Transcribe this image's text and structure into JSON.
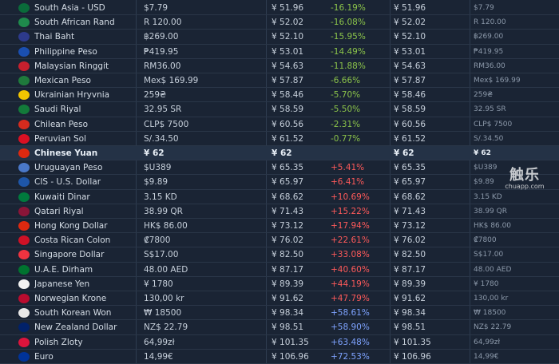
{
  "watermark": {
    "brand": "触乐",
    "site": "chuapp.com"
  },
  "colors": {
    "background": "#1a2434",
    "highlight_row": "#243246",
    "decrease": "#8bc34a",
    "increase": "#ff5a5a",
    "large_increase": "#7ea3ff"
  },
  "rows": [
    {
      "country": "South Asia - USD",
      "local": "$7.79",
      "cny": "¥ 51.96",
      "pct": "-16.19%",
      "cny2": "¥ 51.96",
      "local2": "$7.79",
      "flag": "#0a6b3a",
      "pct_class": "neg"
    },
    {
      "country": "South African Rand",
      "local": "R 120.00",
      "cny": "¥ 52.02",
      "pct": "-16.08%",
      "cny2": "¥ 52.02",
      "local2": "R 120.00",
      "flag": "#1f8a4c",
      "pct_class": "neg"
    },
    {
      "country": "Thai Baht",
      "local": "฿269.00",
      "cny": "¥ 52.10",
      "pct": "-15.95%",
      "cny2": "¥ 52.10",
      "local2": "฿269.00",
      "flag": "#2d3a8c",
      "pct_class": "neg"
    },
    {
      "country": "Philippine Peso",
      "local": "₱419.95",
      "cny": "¥ 53.01",
      "pct": "-14.49%",
      "cny2": "¥ 53.01",
      "local2": "₱419.95",
      "flag": "#1a4fb0",
      "pct_class": "neg"
    },
    {
      "country": "Malaysian Ringgit",
      "local": "RM36.00",
      "cny": "¥ 54.63",
      "pct": "-11.88%",
      "cny2": "¥ 54.63",
      "local2": "RM36.00",
      "flag": "#c8202e",
      "pct_class": "neg"
    },
    {
      "country": "Mexican Peso",
      "local": "Mex$ 169.99",
      "cny": "¥ 57.87",
      "pct": "-6.66%",
      "cny2": "¥ 57.87",
      "local2": "Mex$ 169.99",
      "flag": "#1f7a3c",
      "pct_class": "neg"
    },
    {
      "country": "Ukrainian Hryvnia",
      "local": "259₴",
      "cny": "¥ 58.46",
      "pct": "-5.70%",
      "cny2": "¥ 58.46",
      "local2": "259₴",
      "flag": "#f2c500",
      "pct_class": "neg"
    },
    {
      "country": "Saudi Riyal",
      "local": "32.95 SR",
      "cny": "¥ 58.59",
      "pct": "-5.50%",
      "cny2": "¥ 58.59",
      "local2": "32.95 SR",
      "flag": "#137a3a",
      "pct_class": "neg"
    },
    {
      "country": "Chilean Peso",
      "local": "CLP$ 7500",
      "cny": "¥ 60.56",
      "pct": "-2.31%",
      "cny2": "¥ 60.56",
      "local2": "CLP$ 7500",
      "flag": "#d52b1e",
      "pct_class": "neg"
    },
    {
      "country": "Peruvian Sol",
      "local": "S/.34.50",
      "cny": "¥ 61.52",
      "pct": "-0.77%",
      "cny2": "¥ 61.52",
      "local2": "S/.34.50",
      "flag": "#d91023",
      "pct_class": "neg"
    },
    {
      "country": "Chinese Yuan",
      "local": "¥ 62",
      "cny": "¥ 62",
      "pct": "",
      "cny2": "¥ 62",
      "local2": "¥ 62",
      "flag": "#de2910",
      "pct_class": "zero",
      "highlight": true
    },
    {
      "country": "Uruguayan Peso",
      "local": "$U389",
      "cny": "¥ 65.35",
      "pct": "+5.41%",
      "cny2": "¥ 65.35",
      "local2": "$U389",
      "flag": "#4a78c8",
      "pct_class": "pos"
    },
    {
      "country": "CIS - U.S. Dollar",
      "local": "$9.89",
      "cny": "¥ 65.97",
      "pct": "+6.41%",
      "cny2": "¥ 65.97",
      "local2": "$9.89",
      "flag": "#1e56a8",
      "pct_class": "pos"
    },
    {
      "country": "Kuwaiti Dinar",
      "local": "3.15 KD",
      "cny": "¥ 68.62",
      "pct": "+10.69%",
      "cny2": "¥ 68.62",
      "local2": "3.15 KD",
      "flag": "#007a3d",
      "pct_class": "pos"
    },
    {
      "country": "Qatari Riyal",
      "local": "38.99 QR",
      "cny": "¥ 71.43",
      "pct": "+15.22%",
      "cny2": "¥ 71.43",
      "local2": "38.99 QR",
      "flag": "#8a1538",
      "pct_class": "pos"
    },
    {
      "country": "Hong Kong Dollar",
      "local": "HK$ 86.00",
      "cny": "¥ 73.12",
      "pct": "+17.94%",
      "cny2": "¥ 73.12",
      "local2": "HK$ 86.00",
      "flag": "#de2910",
      "pct_class": "pos"
    },
    {
      "country": "Costa Rican Colon",
      "local": "₡7800",
      "cny": "¥ 76.02",
      "pct": "+22.61%",
      "cny2": "¥ 76.02",
      "local2": "₡7800",
      "flag": "#ce1126",
      "pct_class": "pos"
    },
    {
      "country": "Singapore Dollar",
      "local": "S$17.00",
      "cny": "¥ 82.50",
      "pct": "+33.08%",
      "cny2": "¥ 82.50",
      "local2": "S$17.00",
      "flag": "#ef3340",
      "pct_class": "pos"
    },
    {
      "country": "U.A.E. Dirham",
      "local": "48.00 AED",
      "cny": "¥ 87.17",
      "pct": "+40.60%",
      "cny2": "¥ 87.17",
      "local2": "48.00 AED",
      "flag": "#00732f",
      "pct_class": "pos"
    },
    {
      "country": "Japanese Yen",
      "local": "¥ 1780",
      "cny": "¥ 89.39",
      "pct": "+44.19%",
      "cny2": "¥ 89.39",
      "local2": "¥ 1780",
      "flag": "#f2f2f2",
      "pct_class": "pos"
    },
    {
      "country": "Norwegian Krone",
      "local": "130,00 kr",
      "cny": "¥ 91.62",
      "pct": "+47.79%",
      "cny2": "¥ 91.62",
      "local2": "130,00 kr",
      "flag": "#ba0c2f",
      "pct_class": "pos"
    },
    {
      "country": "South Korean Won",
      "local": "₩ 18500",
      "cny": "¥ 98.34",
      "pct": "+58.61%",
      "cny2": "¥ 98.34",
      "local2": "₩ 18500",
      "flag": "#e8e8e8",
      "pct_class": "strong"
    },
    {
      "country": "New Zealand Dollar",
      "local": "NZ$ 22.79",
      "cny": "¥ 98.51",
      "pct": "+58.90%",
      "cny2": "¥ 98.51",
      "local2": "NZ$ 22.79",
      "flag": "#012169",
      "pct_class": "strong"
    },
    {
      "country": "Polish Zloty",
      "local": "64,99zł",
      "cny": "¥ 101.35",
      "pct": "+63.48%",
      "cny2": "¥ 101.35",
      "local2": "64,99zł",
      "flag": "#dc143c",
      "pct_class": "strong"
    },
    {
      "country": "Euro",
      "local": "14,99€",
      "cny": "¥ 106.96",
      "pct": "+72.53%",
      "cny2": "¥ 106.96",
      "local2": "14,99€",
      "flag": "#003399",
      "pct_class": "strong"
    }
  ]
}
